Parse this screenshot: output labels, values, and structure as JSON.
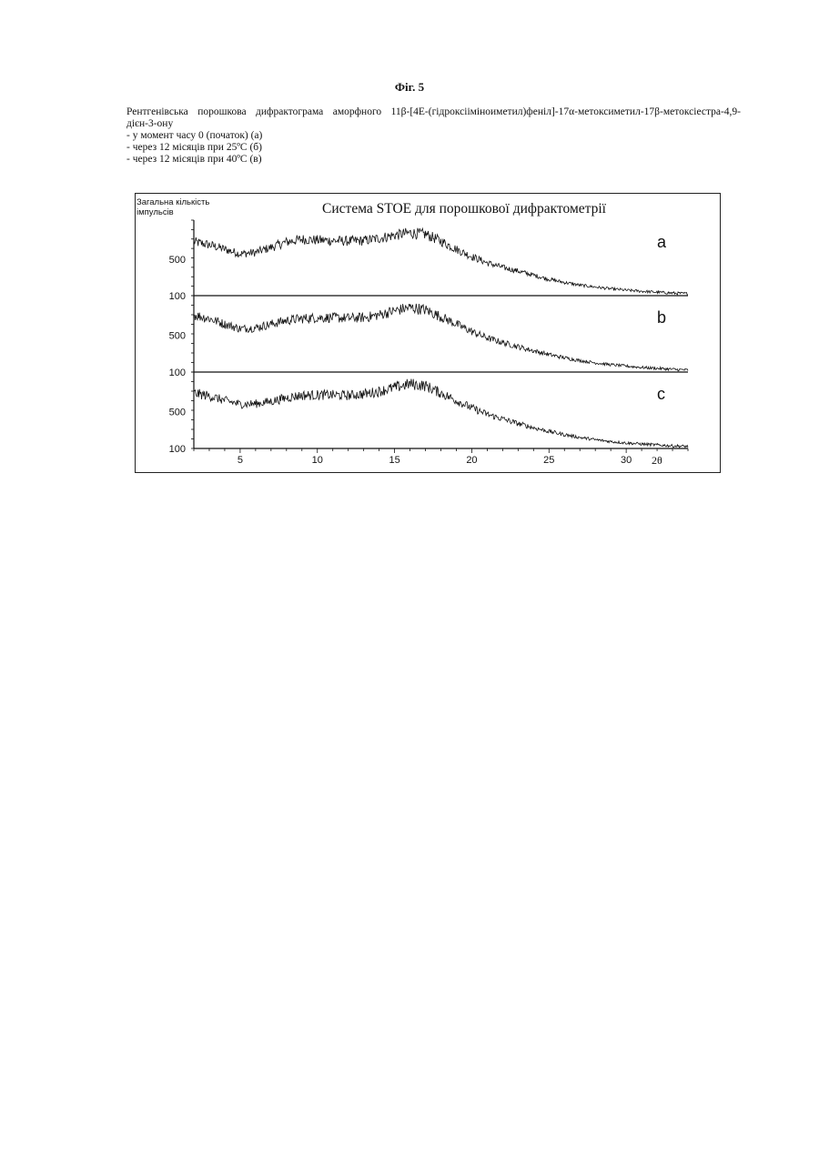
{
  "figure": {
    "title": "Фіг. 5",
    "caption_main": "Рентгенівська порошкова дифрактограма аморфного 11β-[4E-(гідроксііміноиметил)феніл]-17α-метоксиметил-17β-метоксіестра-4,9-дієн-3-ону",
    "caption_items": [
      "- у момент часу 0 (початок) (а)",
      "- через 12 місяців при 25ºС (б)",
      "- через 12 місяців при 40ºС (в)"
    ]
  },
  "chart_data": {
    "type": "line",
    "title": "Система STOE для порошкової дифрактометрії",
    "ylabel": "Загальна кількість імпульсів",
    "xlabel": "2θ",
    "xlim": [
      2,
      34
    ],
    "x_ticks": [
      5,
      10,
      15,
      20,
      25,
      30
    ],
    "ylim": [
      100,
      850
    ],
    "y_ticks": [
      100,
      500
    ],
    "grid": false,
    "legend": "none",
    "line_color": "#111111",
    "series": [
      {
        "name": "a",
        "x": [
          2,
          3,
          4,
          5,
          6,
          7,
          8,
          9,
          10,
          11,
          12,
          13,
          14,
          15,
          16,
          17,
          18,
          19,
          20,
          21,
          22,
          23,
          24,
          25,
          26,
          27,
          28,
          29,
          30,
          31,
          32,
          33,
          34
        ],
        "y": [
          690,
          660,
          610,
          560,
          575,
          630,
          690,
          720,
          710,
          705,
          700,
          705,
          730,
          765,
          790,
          775,
          700,
          610,
          530,
          460,
          410,
          370,
          325,
          280,
          245,
          215,
          195,
          175,
          160,
          148,
          138,
          128,
          122
        ]
      },
      {
        "name": "b",
        "x": [
          2,
          3,
          4,
          5,
          6,
          7,
          8,
          9,
          10,
          11,
          12,
          13,
          14,
          15,
          16,
          17,
          18,
          19,
          20,
          21,
          22,
          23,
          24,
          25,
          26,
          27,
          28,
          29,
          30,
          31,
          32,
          33,
          34
        ],
        "y": [
          720,
          680,
          620,
          570,
          580,
          620,
          660,
          680,
          690,
          690,
          685,
          690,
          720,
          765,
          800,
          775,
          700,
          620,
          540,
          470,
          420,
          375,
          330,
          290,
          255,
          225,
          200,
          180,
          165,
          150,
          140,
          130,
          122
        ]
      },
      {
        "name": "c",
        "x": [
          2,
          3,
          4,
          5,
          6,
          7,
          8,
          9,
          10,
          11,
          12,
          13,
          14,
          15,
          16,
          17,
          18,
          19,
          20,
          21,
          22,
          23,
          24,
          25,
          26,
          27,
          28,
          29,
          30,
          31,
          32,
          33,
          34
        ],
        "y": [
          700,
          670,
          620,
          580,
          585,
          610,
          650,
          675,
          680,
          680,
          675,
          690,
          720,
          760,
          800,
          780,
          700,
          620,
          540,
          470,
          420,
          370,
          325,
          285,
          250,
          220,
          195,
          175,
          160,
          148,
          138,
          128,
          122
        ]
      }
    ]
  }
}
